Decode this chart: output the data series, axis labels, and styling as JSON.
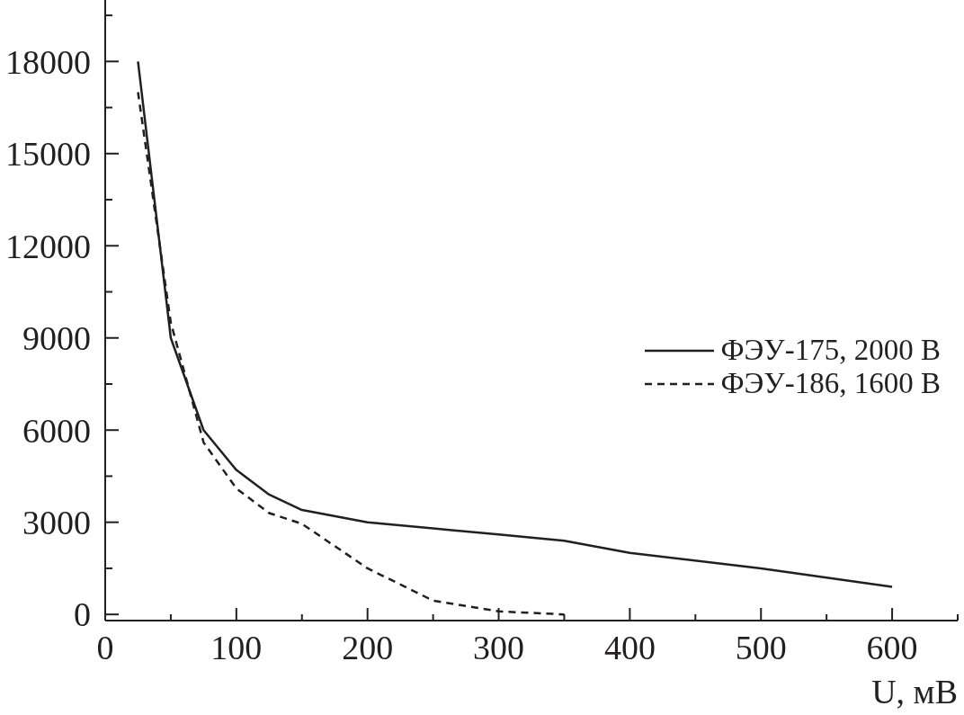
{
  "chart_data": {
    "type": "line",
    "xlabel": "U, мВ",
    "xlim": [
      0,
      650
    ],
    "xticks": [
      0,
      {
        "value": 50,
        "label": null
      },
      100,
      {
        "value": 150,
        "label": null
      },
      200,
      {
        "value": 250,
        "label": null
      },
      300,
      {
        "value": 350,
        "label": null
      },
      400,
      {
        "value": 450,
        "label": null
      },
      500,
      {
        "value": 550,
        "label": null
      },
      600,
      {
        "value": 650,
        "label": null
      }
    ],
    "ylim": [
      -200,
      20000
    ],
    "yticks": [
      0,
      {
        "value": 1500,
        "label": null
      },
      3000,
      {
        "value": 4500,
        "label": null
      },
      6000,
      {
        "value": 7500,
        "label": null
      },
      9000,
      {
        "value": 10500,
        "label": null
      },
      12000,
      {
        "value": 13500,
        "label": null
      },
      15000,
      {
        "value": 16500,
        "label": null
      },
      18000,
      {
        "value": 19500,
        "label": null
      }
    ],
    "legend": "right",
    "marker": "none",
    "series": [
      {
        "name": "ФЭУ-175, 2000 В",
        "color": "#231f20",
        "line_style": "solid",
        "x": [
          25,
          50,
          75,
          100,
          125,
          150,
          200,
          250,
          300,
          350,
          400,
          500,
          600
        ],
        "values": [
          18000,
          9000,
          6000,
          4700,
          3900,
          3400,
          3000,
          2800,
          2600,
          2400,
          2000,
          1500,
          900
        ]
      },
      {
        "name": "ФЭУ-186, 1600 В",
        "color": "#231f20",
        "line_style": "dashed",
        "x": [
          25,
          50,
          75,
          100,
          125,
          150,
          200,
          250,
          300,
          350
        ],
        "values": [
          17000,
          9500,
          5600,
          4100,
          3300,
          2950,
          1500,
          450,
          100,
          0
        ]
      }
    ]
  }
}
